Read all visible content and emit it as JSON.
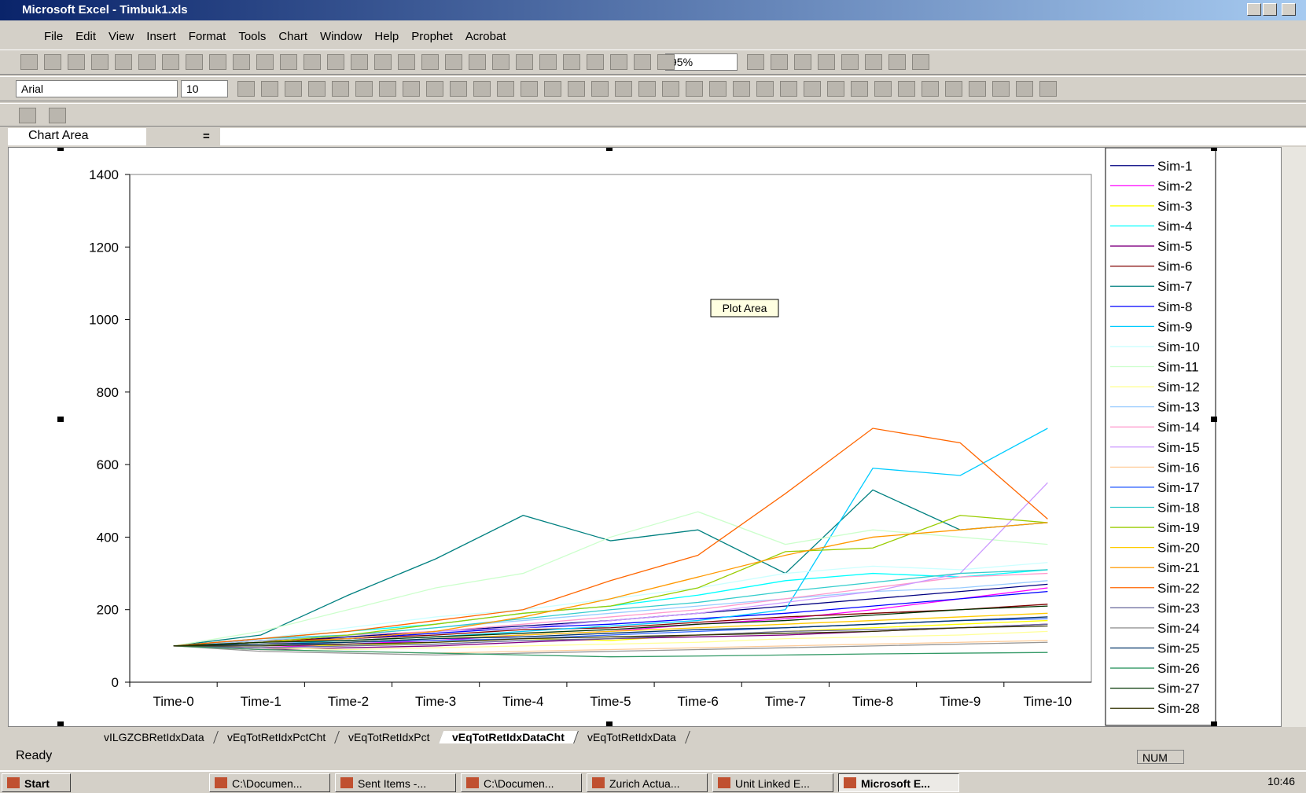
{
  "window_title": "Microsoft Excel - Timbuk1.xls",
  "menu": [
    "File",
    "Edit",
    "View",
    "Insert",
    "Format",
    "Tools",
    "Chart",
    "Window",
    "Help",
    "Prophet",
    "Acrobat"
  ],
  "toolbar": {
    "zoom": "95%",
    "font": "Arial",
    "font_size": "10"
  },
  "name_box": "Chart Area",
  "formula_equals": "=",
  "tooltip": "Plot Area",
  "sheet_tabs": [
    "vILGZCBRetIdxData",
    "vEqTotRetIdxPctCht",
    "vEqTotRetIdxPct",
    "vEqTotRetIdxDataCht",
    "vEqTotRetIdxData"
  ],
  "active_tab": 3,
  "status": {
    "text": "Ready",
    "num": "NUM"
  },
  "taskbar": {
    "start": "Start",
    "items": [
      "C:\\Documen...",
      "Sent Items -...",
      "C:\\Documen...",
      "Zurich Actua...",
      "Unit Linked E...",
      "Microsoft E..."
    ],
    "active_item": 5,
    "clock": "10:46"
  },
  "chart_data": {
    "type": "line",
    "categories": [
      "Time-0",
      "Time-1",
      "Time-2",
      "Time-3",
      "Time-4",
      "Time-5",
      "Time-6",
      "Time-7",
      "Time-8",
      "Time-9",
      "Time-10"
    ],
    "ylim": [
      0,
      1400
    ],
    "yticks": [
      0,
      200,
      400,
      600,
      800,
      1000,
      1200,
      1400
    ],
    "grid": false,
    "legend": "right",
    "series": [
      {
        "name": "Sim-1",
        "color": "#000080",
        "values": [
          100,
          110,
          125,
          140,
          155,
          170,
          190,
          210,
          230,
          250,
          270
        ]
      },
      {
        "name": "Sim-2",
        "color": "#FF00FF",
        "values": [
          100,
          95,
          105,
          115,
          130,
          140,
          160,
          175,
          200,
          230,
          260
        ]
      },
      {
        "name": "Sim-3",
        "color": "#FFFF00",
        "values": [
          100,
          105,
          100,
          110,
          120,
          115,
          130,
          140,
          150,
          160,
          170
        ]
      },
      {
        "name": "Sim-4",
        "color": "#00FFFF",
        "values": [
          100,
          120,
          140,
          160,
          190,
          210,
          240,
          280,
          300,
          290,
          310
        ]
      },
      {
        "name": "Sim-5",
        "color": "#800080",
        "values": [
          100,
          90,
          95,
          100,
          110,
          120,
          125,
          130,
          140,
          150,
          160
        ]
      },
      {
        "name": "Sim-6",
        "color": "#800000",
        "values": [
          100,
          115,
          120,
          130,
          145,
          150,
          165,
          180,
          190,
          200,
          215
        ]
      },
      {
        "name": "Sim-7",
        "color": "#008080",
        "values": [
          100,
          130,
          240,
          340,
          460,
          390,
          420,
          300,
          530,
          420,
          440
        ]
      },
      {
        "name": "Sim-8",
        "color": "#0000FF",
        "values": [
          100,
          110,
          120,
          135,
          150,
          160,
          175,
          190,
          210,
          230,
          250
        ]
      },
      {
        "name": "Sim-9",
        "color": "#00CCFF",
        "values": [
          100,
          105,
          115,
          125,
          140,
          155,
          170,
          200,
          590,
          570,
          700
        ]
      },
      {
        "name": "Sim-10",
        "color": "#CCFFFF",
        "values": [
          100,
          120,
          150,
          180,
          200,
          230,
          260,
          300,
          320,
          310,
          330
        ]
      },
      {
        "name": "Sim-11",
        "color": "#CCFFCC",
        "values": [
          100,
          140,
          200,
          260,
          300,
          400,
          470,
          380,
          420,
          400,
          380
        ]
      },
      {
        "name": "Sim-12",
        "color": "#FFFF99",
        "values": [
          100,
          95,
          90,
          95,
          100,
          105,
          110,
          120,
          125,
          130,
          140
        ]
      },
      {
        "name": "Sim-13",
        "color": "#99CCFF",
        "values": [
          100,
          115,
          130,
          150,
          170,
          190,
          210,
          230,
          250,
          260,
          280
        ]
      },
      {
        "name": "Sim-14",
        "color": "#FF99CC",
        "values": [
          100,
          110,
          130,
          140,
          160,
          180,
          200,
          230,
          260,
          290,
          300
        ]
      },
      {
        "name": "Sim-15",
        "color": "#CC99FF",
        "values": [
          100,
          105,
          120,
          140,
          150,
          170,
          190,
          220,
          250,
          300,
          550
        ]
      },
      {
        "name": "Sim-16",
        "color": "#FFCC99",
        "values": [
          100,
          90,
          85,
          80,
          85,
          90,
          95,
          100,
          105,
          110,
          115
        ]
      },
      {
        "name": "Sim-17",
        "color": "#3366FF",
        "values": [
          100,
          100,
          110,
          115,
          120,
          130,
          140,
          150,
          160,
          170,
          175
        ]
      },
      {
        "name": "Sim-18",
        "color": "#33CCCC",
        "values": [
          100,
          120,
          130,
          150,
          175,
          200,
          220,
          250,
          275,
          300,
          310
        ]
      },
      {
        "name": "Sim-19",
        "color": "#99CC00",
        "values": [
          100,
          110,
          130,
          160,
          190,
          210,
          260,
          360,
          370,
          460,
          440
        ]
      },
      {
        "name": "Sim-20",
        "color": "#FFCC00",
        "values": [
          100,
          105,
          110,
          120,
          130,
          140,
          150,
          160,
          170,
          180,
          190
        ]
      },
      {
        "name": "Sim-21",
        "color": "#FF9900",
        "values": [
          100,
          110,
          120,
          140,
          180,
          230,
          290,
          350,
          400,
          420,
          440
        ]
      },
      {
        "name": "Sim-22",
        "color": "#FF6600",
        "values": [
          100,
          120,
          140,
          170,
          200,
          280,
          350,
          520,
          700,
          660,
          450
        ]
      },
      {
        "name": "Sim-23",
        "color": "#666699",
        "values": [
          100,
          95,
          100,
          105,
          115,
          120,
          130,
          140,
          145,
          150,
          160
        ]
      },
      {
        "name": "Sim-24",
        "color": "#969696",
        "values": [
          100,
          85,
          80,
          75,
          80,
          85,
          90,
          95,
          100,
          105,
          110
        ]
      },
      {
        "name": "Sim-25",
        "color": "#003366",
        "values": [
          100,
          105,
          110,
          120,
          125,
          135,
          145,
          150,
          160,
          170,
          180
        ]
      },
      {
        "name": "Sim-26",
        "color": "#339966",
        "values": [
          100,
          90,
          85,
          80,
          75,
          70,
          72,
          75,
          78,
          80,
          82
        ]
      },
      {
        "name": "Sim-27",
        "color": "#003300",
        "values": [
          100,
          110,
          115,
          125,
          135,
          145,
          160,
          170,
          185,
          200,
          210
        ]
      },
      {
        "name": "Sim-28",
        "color": "#333300",
        "values": [
          100,
          100,
          105,
          110,
          120,
          125,
          130,
          135,
          140,
          150,
          155
        ]
      }
    ]
  }
}
